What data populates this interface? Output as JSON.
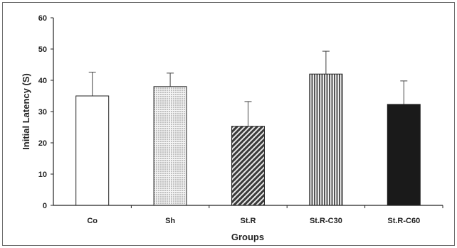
{
  "chart_data": {
    "type": "bar",
    "title": "",
    "xlabel": "Groups",
    "ylabel": "Initial Latency (S)",
    "ylim": [
      0,
      60
    ],
    "yticks": [
      0,
      10,
      20,
      30,
      40,
      50,
      60
    ],
    "categories": [
      "Co",
      "Sh",
      "St.R",
      "St.R-C30",
      "St.R-C60"
    ],
    "values": [
      35,
      38,
      25.3,
      42,
      32.3
    ],
    "errors": [
      7.6,
      4.3,
      7.9,
      7.3,
      7.5
    ],
    "fills": [
      "white",
      "dotted",
      "diagonal-hatch",
      "vertical-stripes",
      "black"
    ],
    "grid": false,
    "legend": "none"
  }
}
